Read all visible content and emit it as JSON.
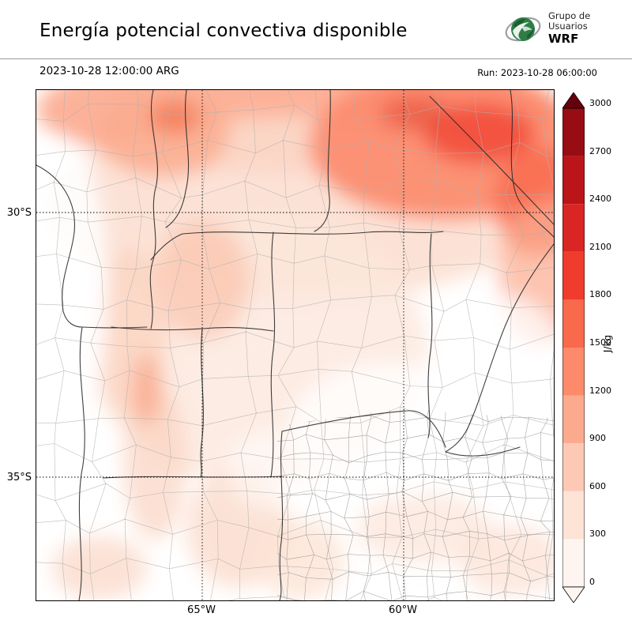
{
  "header": {
    "title": "Energía potencial convectiva disponible",
    "valid_time": "2023-10-28 12:00:00 ARG",
    "run_label": "Run: 2023-10-28 06:00:00",
    "logo": {
      "line1": "Grupo de",
      "line2": "Usuarios",
      "line3": "WRF"
    }
  },
  "map": {
    "lat_ticks": [
      "30°S",
      "35°S"
    ],
    "lon_ticks": [
      "65°W",
      "60°W"
    ],
    "field": "CAPE (convective available potential energy)"
  },
  "colorbar": {
    "unit": "J/kg",
    "ticks": [
      "3000",
      "2700",
      "2400",
      "2100",
      "1800",
      "1500",
      "1200",
      "900",
      "600",
      "300",
      "0"
    ],
    "colors_top_to_bottom": [
      "#980c13",
      "#bb151a",
      "#d92523",
      "#ef3c2c",
      "#f9694c",
      "#fc8a6b",
      "#fcaa8e",
      "#fdc9b4",
      "#fee3d7",
      "#fff5f0"
    ],
    "over_color": "#67000d",
    "under_color": "#fff5f0"
  }
}
